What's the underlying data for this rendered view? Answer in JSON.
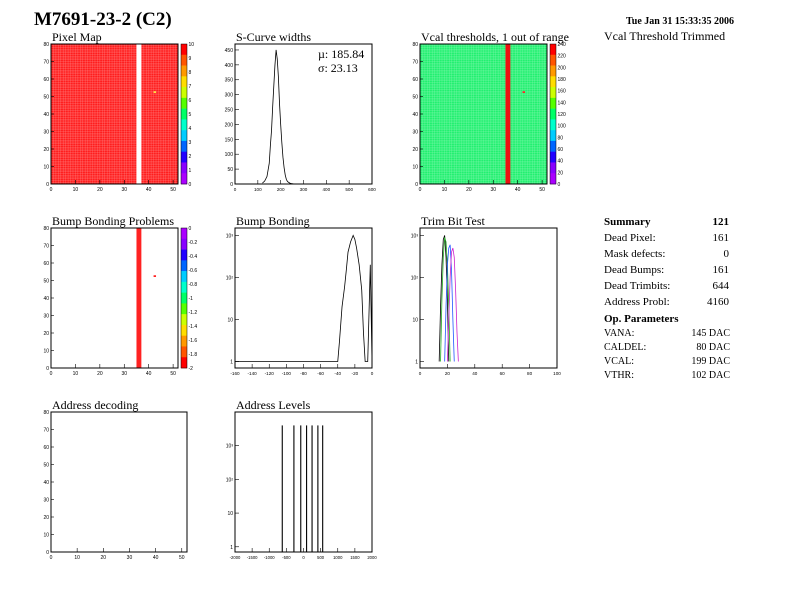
{
  "header": {
    "title": "M7691-23-2 (C2)",
    "date": "Tue Jan 31 15:33:35 2006",
    "vcal_trimmed_label": "Vcal Threshold Trimmed"
  },
  "summary": {
    "title": "Summary",
    "value": "121",
    "rows": [
      {
        "label": "Dead Pixel:",
        "value": "161"
      },
      {
        "label": "Mask defects:",
        "value": "0"
      },
      {
        "label": "Dead Bumps:",
        "value": "161"
      },
      {
        "label": "Dead Trimbits:",
        "value": "644"
      },
      {
        "label": "Address Probl:",
        "value": "4160"
      }
    ]
  },
  "op_parameters": {
    "title": "Op. Parameters",
    "rows": [
      {
        "label": "VANA:",
        "value": "145 DAC"
      },
      {
        "label": "CALDEL:",
        "value": "80 DAC"
      },
      {
        "label": "VCAL:",
        "value": "199 DAC"
      },
      {
        "label": "VTHR:",
        "value": "102 DAC"
      }
    ]
  },
  "colors": {
    "map_red": "#ff1e1e",
    "map_green": "#22f070",
    "line": "#000000",
    "grid": "#ffffff"
  },
  "chart_data": [
    {
      "id": "pixel_map",
      "type": "heatmap",
      "title": "Pixel Map",
      "xlim": [
        0,
        52
      ],
      "ylim": [
        0,
        80
      ],
      "xticks": [
        "0",
        "10",
        "20",
        "30",
        "40",
        "50"
      ],
      "yticks": [
        "0",
        "10",
        "20",
        "30",
        "40",
        "50",
        "60",
        "70",
        "80"
      ],
      "zticks": [
        "0",
        "1",
        "2",
        "3",
        "4",
        "5",
        "6",
        "7",
        "8",
        "9",
        "10"
      ],
      "uniform_value": 10,
      "dead_column": 35,
      "hot_pixel": [
        42,
        52
      ]
    },
    {
      "id": "scurve_widths",
      "type": "line",
      "title": "S-Curve widths",
      "xlim": [
        0,
        600
      ],
      "ylim": [
        0,
        470
      ],
      "xticks": [
        "0",
        "100",
        "200",
        "300",
        "400",
        "500",
        "600"
      ],
      "yticks": [
        "0",
        "50",
        "100",
        "150",
        "200",
        "250",
        "300",
        "350",
        "400",
        "450"
      ],
      "stats": {
        "mean": "µ: 185.84",
        "sigma": "σ: 23.13"
      },
      "x": [
        120,
        130,
        140,
        150,
        155,
        160,
        165,
        170,
        175,
        180,
        185,
        190,
        195,
        200,
        205,
        210,
        215,
        220,
        225,
        230,
        240,
        250,
        260
      ],
      "values": [
        3,
        10,
        25,
        70,
        130,
        180,
        260,
        330,
        400,
        450,
        420,
        360,
        270,
        200,
        140,
        90,
        55,
        30,
        15,
        8,
        3,
        1,
        0
      ]
    },
    {
      "id": "vcal_thresholds",
      "type": "heatmap",
      "title": "Vcal thresholds, 1 out of range",
      "xlim": [
        0,
        52
      ],
      "ylim": [
        0,
        80
      ],
      "xticks": [
        "0",
        "10",
        "20",
        "30",
        "40",
        "50"
      ],
      "yticks": [
        "0",
        "10",
        "20",
        "30",
        "40",
        "50",
        "60",
        "70",
        "80"
      ],
      "zticks": [
        "0",
        "20",
        "40",
        "60",
        "80",
        "100",
        "120",
        "140",
        "160",
        "180",
        "200",
        "220",
        "240"
      ],
      "uniform_value": 150,
      "hot_column": 35,
      "column_value": 250,
      "hot_pixel": [
        42,
        52
      ]
    },
    {
      "id": "bump_bonding_problems",
      "type": "heatmap",
      "title": "Bump Bonding Problems",
      "xlim": [
        0,
        52
      ],
      "ylim": [
        0,
        80
      ],
      "xticks": [
        "0",
        "10",
        "20",
        "30",
        "40",
        "50"
      ],
      "yticks": [
        "0",
        "10",
        "20",
        "30",
        "40",
        "50",
        "60",
        "70",
        "80"
      ],
      "zticks": [
        "0",
        "-0.2",
        "-0.4",
        "-0.6",
        "-0.8",
        "-1",
        "-1.2",
        "-1.4",
        "-1.6",
        "-1.8",
        "-2"
      ],
      "problem_column": 35,
      "problem_pixel": [
        42,
        52
      ]
    },
    {
      "id": "bump_bonding",
      "type": "line",
      "title": "Bump Bonding",
      "xlim": [
        -160,
        0
      ],
      "log_y": true,
      "ylim": [
        0.7,
        1500
      ],
      "xticks": [
        "-160",
        "-140",
        "-120",
        "-100",
        "-80",
        "-60",
        "-40",
        "-20",
        "0"
      ],
      "yticks": [
        "1",
        "10",
        "10²",
        "10³"
      ],
      "x": [
        -160,
        -158,
        -155,
        -152,
        -150,
        -40,
        -38,
        -35,
        -32,
        -30,
        -28,
        -25,
        -22,
        -20,
        -18,
        -15,
        -12,
        -10,
        -8,
        -5,
        -2,
        0
      ],
      "values": [
        1,
        1,
        1,
        1,
        1,
        1,
        3,
        20,
        60,
        150,
        400,
        700,
        1000,
        800,
        500,
        200,
        50,
        5,
        1,
        1,
        200,
        1
      ]
    },
    {
      "id": "trim_bit_test",
      "type": "line",
      "title": "Trim Bit Test",
      "xlim": [
        0,
        100
      ],
      "log_y": true,
      "ylim": [
        0.7,
        1500
      ],
      "xticks": [
        "0",
        "20",
        "40",
        "60",
        "80",
        "100"
      ],
      "yticks": [
        "1",
        "10",
        "10²",
        "10³"
      ],
      "series": [
        {
          "color": "#000000",
          "x": [
            14,
            15,
            16,
            17,
            18,
            19,
            20,
            21
          ],
          "values": [
            1,
            20,
            200,
            800,
            1000,
            300,
            30,
            1
          ]
        },
        {
          "color": "#22aa22",
          "x": [
            15,
            16,
            17,
            18,
            19,
            20,
            21,
            22
          ],
          "values": [
            1,
            30,
            300,
            900,
            700,
            200,
            20,
            1
          ]
        },
        {
          "color": "#2255ff",
          "x": [
            18,
            19,
            20,
            21,
            22,
            23,
            24,
            25
          ],
          "values": [
            1,
            20,
            200,
            500,
            600,
            150,
            10,
            1
          ]
        },
        {
          "color": "#cc22cc",
          "x": [
            20,
            21,
            22,
            23,
            24,
            25,
            26,
            27,
            28
          ],
          "values": [
            1,
            10,
            100,
            400,
            500,
            300,
            50,
            5,
            1
          ]
        }
      ]
    },
    {
      "id": "address_decoding",
      "type": "heatmap",
      "title": "Address decoding",
      "xlim": [
        0,
        52
      ],
      "ylim": [
        0,
        80
      ],
      "xticks": [
        "0",
        "10",
        "20",
        "30",
        "40",
        "50"
      ],
      "yticks": [
        "0",
        "10",
        "20",
        "30",
        "40",
        "50",
        "60",
        "70",
        "80"
      ]
    },
    {
      "id": "address_levels",
      "type": "line",
      "title": "Address Levels",
      "xlim": [
        -2000,
        2000
      ],
      "log_y": true,
      "ylim": [
        0.7,
        10000
      ],
      "xticks": [
        "-2000",
        "-1500",
        "-1000",
        "-500",
        "0",
        "500",
        "1000",
        "1500",
        "2000"
      ],
      "yticks": [
        "1",
        "10",
        "10²",
        "10³"
      ],
      "x": [
        -620,
        -280,
        -80,
        90,
        250,
        420,
        560
      ],
      "values": [
        4000,
        4000,
        4000,
        4000,
        4000,
        4000,
        4000
      ]
    }
  ]
}
